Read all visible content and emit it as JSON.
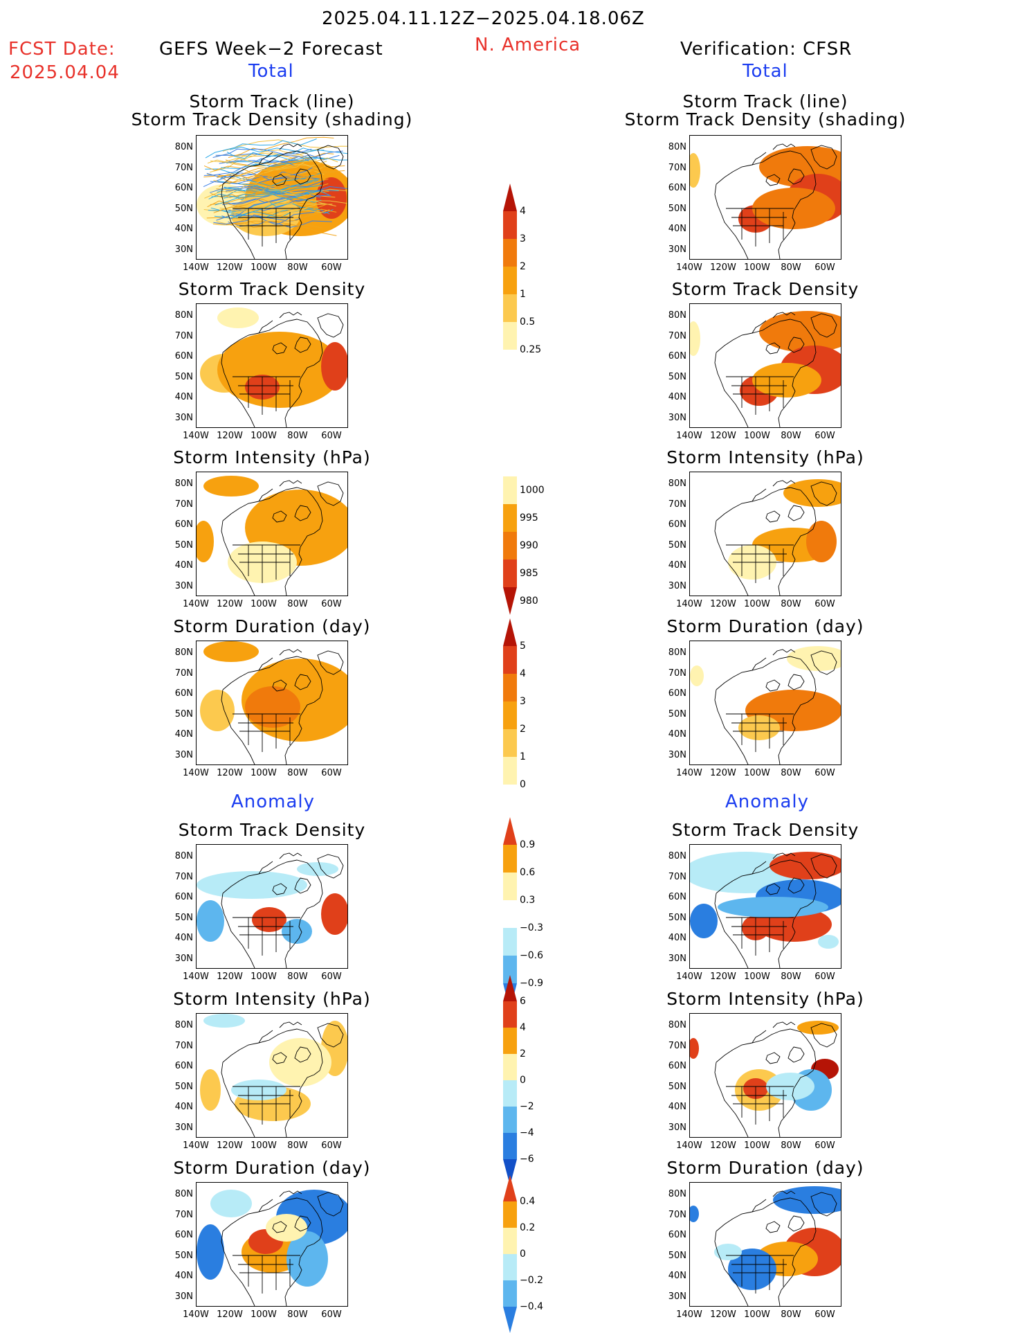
{
  "header": {
    "period": "2025.04.11.12Z−2025.04.18.06Z",
    "region": "N. America",
    "fcst_label": "FCST Date:",
    "fcst_date": "2025.04.04",
    "left_title": "GEFS Week−2 Forecast",
    "right_title": "Verification: CFSR",
    "total": "Total",
    "anomaly": "Anomaly"
  },
  "panels": {
    "track_line_1": "Storm Track (line)",
    "track_line_2": "Storm Track Density (shading)",
    "density": "Storm Track Density",
    "intensity": "Storm Intensity (hPa)",
    "duration": "Storm Duration (day)"
  },
  "axes": {
    "lat": [
      "80N",
      "70N",
      "60N",
      "50N",
      "40N",
      "30N"
    ],
    "lon": [
      "140W",
      "120W",
      "100W",
      "80W",
      "60W"
    ]
  },
  "colorbars": {
    "density_total": [
      "4",
      "3",
      "2",
      "1",
      "0.5",
      "0.25"
    ],
    "intensity_total": [
      "1000",
      "995",
      "990",
      "985",
      "980"
    ],
    "duration_total": [
      "5",
      "4",
      "3",
      "2",
      "1",
      "0"
    ],
    "density_anom": [
      "0.9",
      "0.6",
      "0.3",
      "−0.3",
      "−0.6",
      "−0.9"
    ],
    "intensity_anom": [
      "6",
      "4",
      "2",
      "0",
      "−2",
      "−4",
      "−6"
    ],
    "duration_anom": [
      "0.4",
      "0.2",
      "0",
      "−0.2",
      "−0.4"
    ]
  },
  "colors": {
    "pale_yellow": "#fff3b0",
    "light_orange": "#fcc94e",
    "orange": "#f7a10f",
    "dark_orange": "#f07a0c",
    "red": "#e0401a",
    "dark_red": "#b51406",
    "light_blue": "#b7ebf7",
    "mid_blue": "#5db6ee",
    "blue": "#2a7ee0",
    "dark_blue": "#1250c8"
  }
}
